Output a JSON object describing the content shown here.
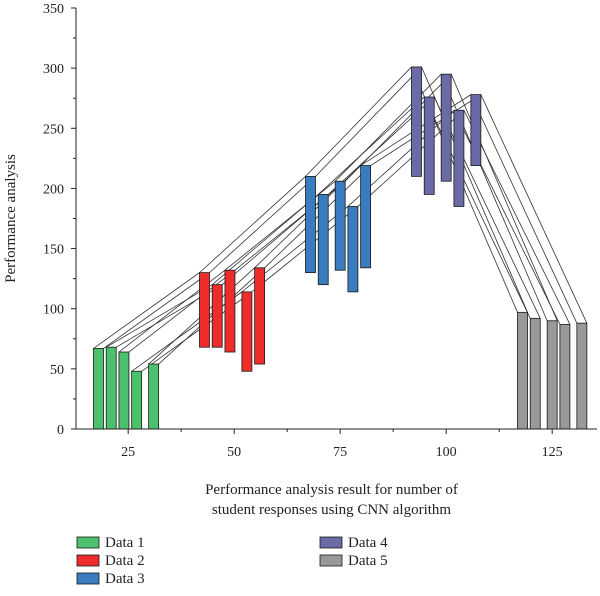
{
  "chart_data": {
    "type": "bar",
    "subtype": "floating-range-bars-with-connectors",
    "title": "",
    "xlabel": "Performance analysis result for number of student responses using CNN algorithm",
    "xlabel_lines": [
      "Performance analysis result for number of",
      "student responses using CNN algorithm"
    ],
    "ylabel": "Performance analysis",
    "xlim": [
      0,
      135
    ],
    "ylim": [
      0,
      350
    ],
    "x_ticks": [
      25,
      50,
      75,
      100,
      125
    ],
    "y_ticks": [
      0,
      50,
      100,
      150,
      200,
      250,
      300,
      350
    ],
    "grid": false,
    "legend_position": "bottom",
    "series": [
      {
        "name": "Data 1",
        "color": "#4cc06c",
        "bars": [
          {
            "x": 18,
            "low": 0,
            "high": 67
          },
          {
            "x": 21,
            "low": 0,
            "high": 68
          },
          {
            "x": 24,
            "low": 0,
            "high": 64
          },
          {
            "x": 27,
            "low": 0,
            "high": 48
          },
          {
            "x": 31,
            "low": 0,
            "high": 54
          }
        ]
      },
      {
        "name": "Data 2",
        "color": "#ee2c2c",
        "bars": [
          {
            "x": 43,
            "low": 68,
            "high": 130
          },
          {
            "x": 46,
            "low": 68,
            "high": 120
          },
          {
            "x": 49,
            "low": 64,
            "high": 132
          },
          {
            "x": 53,
            "low": 48,
            "high": 114
          },
          {
            "x": 56,
            "low": 54,
            "high": 134
          }
        ]
      },
      {
        "name": "Data 3",
        "color": "#3a7cc0",
        "bars": [
          {
            "x": 68,
            "low": 130,
            "high": 210
          },
          {
            "x": 71,
            "low": 120,
            "high": 195
          },
          {
            "x": 75,
            "low": 132,
            "high": 206
          },
          {
            "x": 78,
            "low": 114,
            "high": 185
          },
          {
            "x": 81,
            "low": 134,
            "high": 219
          }
        ]
      },
      {
        "name": "Data 4",
        "color": "#6a6aa6",
        "bars": [
          {
            "x": 93,
            "low": 210,
            "high": 301
          },
          {
            "x": 96,
            "low": 195,
            "high": 276
          },
          {
            "x": 100,
            "low": 206,
            "high": 295
          },
          {
            "x": 103,
            "low": 185,
            "high": 265
          },
          {
            "x": 107,
            "low": 219,
            "high": 278
          }
        ]
      },
      {
        "name": "Data 5",
        "color": "#999999",
        "bars": [
          {
            "x": 118,
            "low": 0,
            "high": 97
          },
          {
            "x": 121,
            "low": 0,
            "high": 92
          },
          {
            "x": 125,
            "low": 0,
            "high": 90
          },
          {
            "x": 128,
            "low": 0,
            "high": 87
          },
          {
            "x": 132,
            "low": 0,
            "high": 88
          }
        ]
      }
    ]
  }
}
